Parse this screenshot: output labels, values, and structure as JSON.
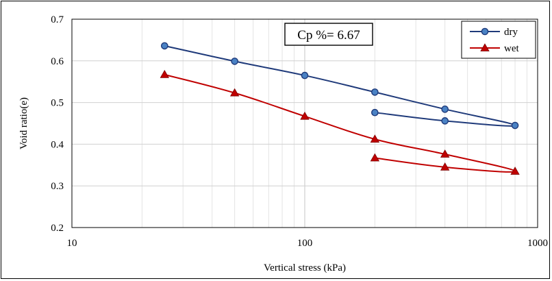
{
  "chart_data": {
    "type": "line",
    "title": "",
    "annotation": "Cp  %= 6.67",
    "xlabel": "Vertical stress (kPa)",
    "ylabel": "Void ratio(e)",
    "x_scale": "log",
    "xlim": [
      10,
      1000
    ],
    "ylim": [
      0.2,
      0.7
    ],
    "x_ticks": [
      10,
      100,
      1000
    ],
    "x_tick_labels": [
      "10",
      "100",
      "1000"
    ],
    "y_ticks": [
      0.2,
      0.3,
      0.4,
      0.5,
      0.6,
      0.7
    ],
    "y_tick_labels": [
      "0.2",
      "0.3",
      "0.4",
      "0.5",
      "0.6",
      "0.7"
    ],
    "grid": true,
    "legend_position": "top-right",
    "series": [
      {
        "name": "dry",
        "color": "#1f3a7a",
        "marker": "circle",
        "points": [
          {
            "x": 25,
            "y": 0.636
          },
          {
            "x": 50,
            "y": 0.599
          },
          {
            "x": 100,
            "y": 0.565
          },
          {
            "x": 200,
            "y": 0.525
          },
          {
            "x": 400,
            "y": 0.484
          },
          {
            "x": 800,
            "y": 0.445
          },
          {
            "x": 400,
            "y": 0.456
          },
          {
            "x": 200,
            "y": 0.476
          }
        ]
      },
      {
        "name": "wet",
        "color": "#c00000",
        "marker": "triangle",
        "points": [
          {
            "x": 25,
            "y": 0.567
          },
          {
            "x": 50,
            "y": 0.523
          },
          {
            "x": 100,
            "y": 0.467
          },
          {
            "x": 200,
            "y": 0.412
          },
          {
            "x": 400,
            "y": 0.376
          },
          {
            "x": 800,
            "y": 0.335
          },
          {
            "x": 400,
            "y": 0.345
          },
          {
            "x": 200,
            "y": 0.367
          }
        ]
      }
    ]
  }
}
